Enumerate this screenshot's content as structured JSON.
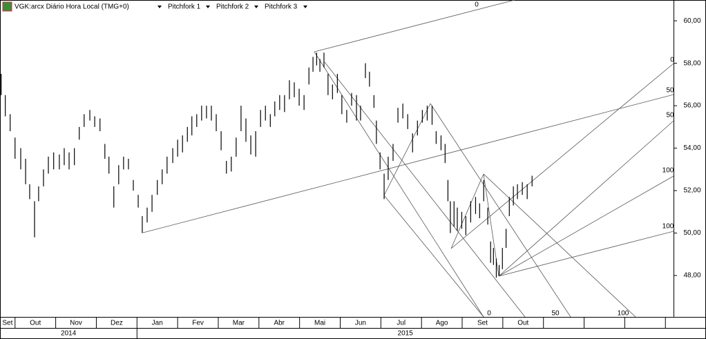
{
  "chart_data": {
    "type": "ohlc",
    "title": "VGK:arcx Diário Hora Local (TMG+0)",
    "xlim": [
      0.63,
      17.2
    ],
    "xticks": [
      {
        "value": 0,
        "label": "Set"
      },
      {
        "value": 1,
        "label": "Out"
      },
      {
        "value": 2,
        "label": "Nov"
      },
      {
        "value": 3,
        "label": "Dez"
      },
      {
        "value": 4,
        "label": "Jan"
      },
      {
        "value": 5,
        "label": "Fev"
      },
      {
        "value": 6,
        "label": "Mar"
      },
      {
        "value": 7,
        "label": "Abr"
      },
      {
        "value": 8,
        "label": "Mai"
      },
      {
        "value": 9,
        "label": "Jun"
      },
      {
        "value": 10,
        "label": "Jul"
      },
      {
        "value": 11,
        "label": "Ago"
      },
      {
        "value": 12,
        "label": "Set"
      },
      {
        "value": 13,
        "label": "Out"
      },
      {
        "value": 14,
        "label": null
      },
      {
        "value": 15,
        "label": null
      },
      {
        "value": 16,
        "label": null
      },
      {
        "value": 17,
        "label": null
      }
    ],
    "years": [
      "2014",
      "2015"
    ],
    "ylim": [
      46.05,
      60.98
    ],
    "yticks": [
      {
        "value": 48,
        "label": "48,00"
      },
      {
        "value": 50,
        "label": "50,00"
      },
      {
        "value": 52,
        "label": "52,00"
      },
      {
        "value": 54,
        "label": "54,00"
      },
      {
        "value": 56,
        "label": "56,00"
      },
      {
        "value": 58,
        "label": "58,00"
      },
      {
        "value": 60,
        "label": "60,00"
      }
    ],
    "pitchforks": [
      {
        "name": "Pitchfork 1",
        "levels": [
          0,
          50
        ]
      },
      {
        "name": "Pitchfork 2",
        "levels": [
          0,
          50,
          100
        ]
      },
      {
        "name": "Pitchfork 3",
        "levels": [
          0,
          50,
          100
        ]
      }
    ],
    "series": [
      {
        "color": "#000000",
        "x": [
          0.66,
          0.76,
          0.88,
          1.0,
          1.14,
          1.26,
          1.36,
          1.48,
          1.58,
          1.7,
          1.82,
          1.95,
          2.09,
          2.21,
          2.33,
          2.46,
          2.58,
          2.7,
          2.84,
          2.96,
          3.09,
          3.21,
          3.31,
          3.43,
          3.55,
          3.67,
          3.79,
          3.91,
          4.03,
          4.13,
          4.25,
          4.37,
          4.5,
          4.62,
          4.74,
          4.88,
          5.0,
          5.12,
          5.24,
          5.35,
          5.47,
          5.59,
          5.71,
          5.83,
          5.95,
          6.07,
          6.2,
          6.32,
          6.44,
          6.56,
          6.68,
          6.8,
          6.92,
          7.04,
          7.16,
          7.28,
          7.39,
          7.51,
          7.63,
          7.75,
          7.87,
          7.99,
          8.11,
          8.23,
          8.33,
          8.42,
          8.5,
          8.6,
          8.7,
          8.81,
          8.93,
          9.04,
          9.16,
          9.28,
          9.4,
          9.5,
          9.62,
          9.72,
          9.83,
          9.89,
          9.98,
          10.08,
          10.18,
          10.3,
          10.42,
          10.54,
          10.66,
          10.78,
          10.9,
          11.02,
          11.14,
          11.26,
          11.36,
          11.48,
          11.58,
          11.65,
          11.71,
          11.8,
          11.88,
          11.99,
          12.09,
          12.21,
          12.33,
          12.43,
          12.53,
          12.63,
          12.7,
          12.77,
          12.84,
          12.91,
          12.99,
          13.08,
          13.16,
          13.26,
          13.36,
          13.48,
          13.6,
          13.72
        ],
        "high": [
          57.5,
          56.5,
          55.6,
          54.5,
          54,
          53.5,
          52.3,
          51.5,
          52.2,
          53,
          53.6,
          53.8,
          53.7,
          54,
          53.8,
          54,
          55,
          55.6,
          55.8,
          55.5,
          55.4,
          54.2,
          53.6,
          52.2,
          53.2,
          53.6,
          53.5,
          52.5,
          51.8,
          50.8,
          51.2,
          51.8,
          52.5,
          53,
          53.6,
          54,
          54.4,
          54.6,
          55,
          55.5,
          55.6,
          56,
          56,
          56,
          55.6,
          54.8,
          53.4,
          53.6,
          54.5,
          56,
          55.4,
          54.6,
          54.8,
          55.8,
          56,
          55.6,
          56.2,
          56.5,
          56.5,
          57.2,
          57.1,
          56.8,
          56.5,
          57.8,
          58.3,
          58.5,
          58.2,
          58.5,
          57.5,
          57,
          57.5,
          56.5,
          55.8,
          56.6,
          56.5,
          56,
          58,
          57.6,
          56.5,
          55.3,
          53.8,
          52.8,
          53.6,
          54.2,
          55.9,
          56.1,
          55.6,
          54.7,
          55.3,
          55.8,
          56,
          56,
          54.8,
          54.6,
          54.2,
          52.5,
          51.5,
          51.5,
          51.2,
          51,
          50.8,
          51.5,
          51.7,
          51.4,
          52.5,
          51.2,
          49.6,
          49.3,
          48.8,
          48.5,
          49.3,
          50.2,
          51.7,
          52.2,
          52.3,
          52.4,
          52.3,
          52.7
        ],
        "low": [
          56.5,
          55.5,
          54.8,
          53.5,
          53,
          52.3,
          51.6,
          49.8,
          51.5,
          52.2,
          52.8,
          53,
          53,
          53.2,
          53,
          53.2,
          54.4,
          55,
          55.3,
          55,
          54.8,
          53.5,
          52.8,
          51.2,
          52.3,
          53,
          53,
          52,
          51.2,
          50,
          50.5,
          51,
          51.8,
          52.3,
          52.8,
          53.3,
          53.6,
          53.8,
          54.3,
          54.6,
          55,
          55.3,
          55.4,
          55.3,
          54.8,
          53.9,
          52.8,
          52.9,
          53.6,
          54.8,
          54.3,
          53.7,
          53.6,
          55,
          55.3,
          55,
          55.5,
          55.8,
          55.7,
          56.3,
          56.4,
          56,
          55.8,
          57,
          57.6,
          57.9,
          57.6,
          57.8,
          56.5,
          56.3,
          56.6,
          55.6,
          55.2,
          56,
          55.3,
          55.3,
          57.3,
          56.9,
          55.9,
          54.2,
          53,
          51.6,
          52.5,
          53.4,
          55.2,
          55.4,
          54.9,
          53.8,
          54.6,
          55.2,
          55.3,
          55.1,
          54.2,
          53.9,
          53.3,
          51.5,
          50,
          50.3,
          50.1,
          50.2,
          49.9,
          50.5,
          50.9,
          50.7,
          51.5,
          50.4,
          48.6,
          48.5,
          47.9,
          48,
          48.3,
          49.3,
          50.8,
          51.3,
          51.6,
          51.8,
          51.6,
          52.2
        ]
      }
    ]
  }
}
